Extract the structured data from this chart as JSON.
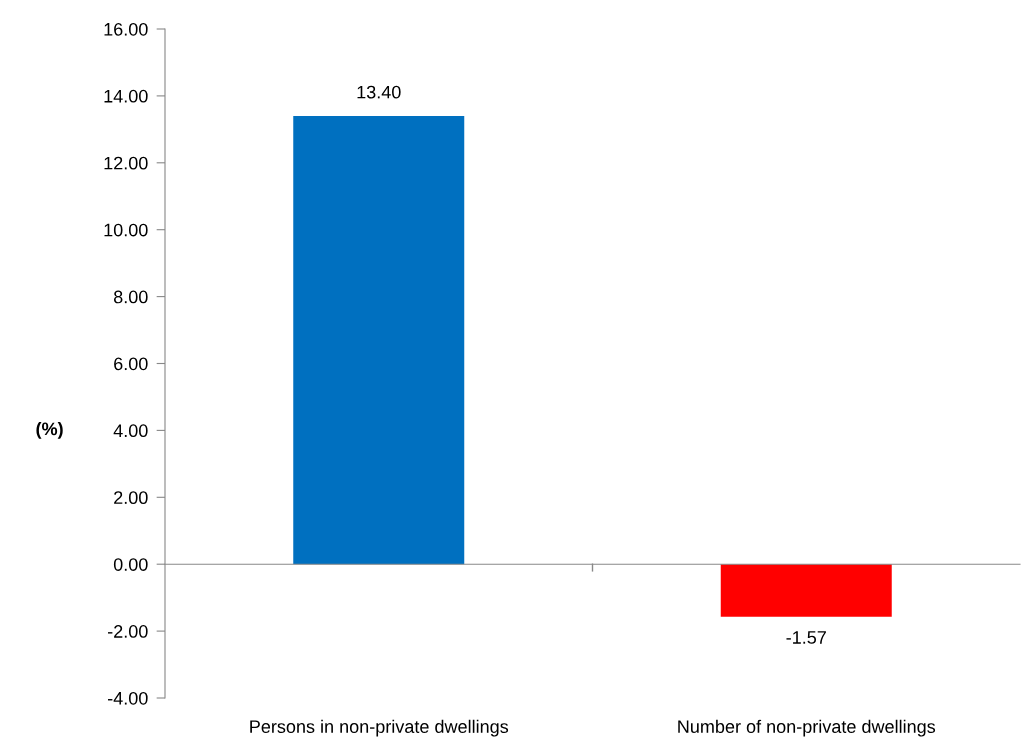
{
  "chart_data": {
    "type": "bar",
    "ylabel": "(%)",
    "categories": [
      "Persons in non-private dwellings",
      "Number of non-private dwellings"
    ],
    "values": [
      13.4,
      -1.57
    ],
    "colors": [
      "#0070c0",
      "#ff0000"
    ],
    "value_labels": [
      "13.40",
      "-1.57"
    ],
    "ylim": [
      -4,
      16
    ],
    "yticks": [
      {
        "value": -4,
        "label": "-4.00"
      },
      {
        "value": -2,
        "label": "-2.00"
      },
      {
        "value": 0,
        "label": "0.00"
      },
      {
        "value": 2,
        "label": "2.00"
      },
      {
        "value": 4,
        "label": "4.00"
      },
      {
        "value": 6,
        "label": "6.00"
      },
      {
        "value": 8,
        "label": "8.00"
      },
      {
        "value": 10,
        "label": "10.00"
      },
      {
        "value": 12,
        "label": "12.00"
      },
      {
        "value": 14,
        "label": "14.00"
      },
      {
        "value": 16,
        "label": "16.00"
      }
    ],
    "legend": false
  }
}
